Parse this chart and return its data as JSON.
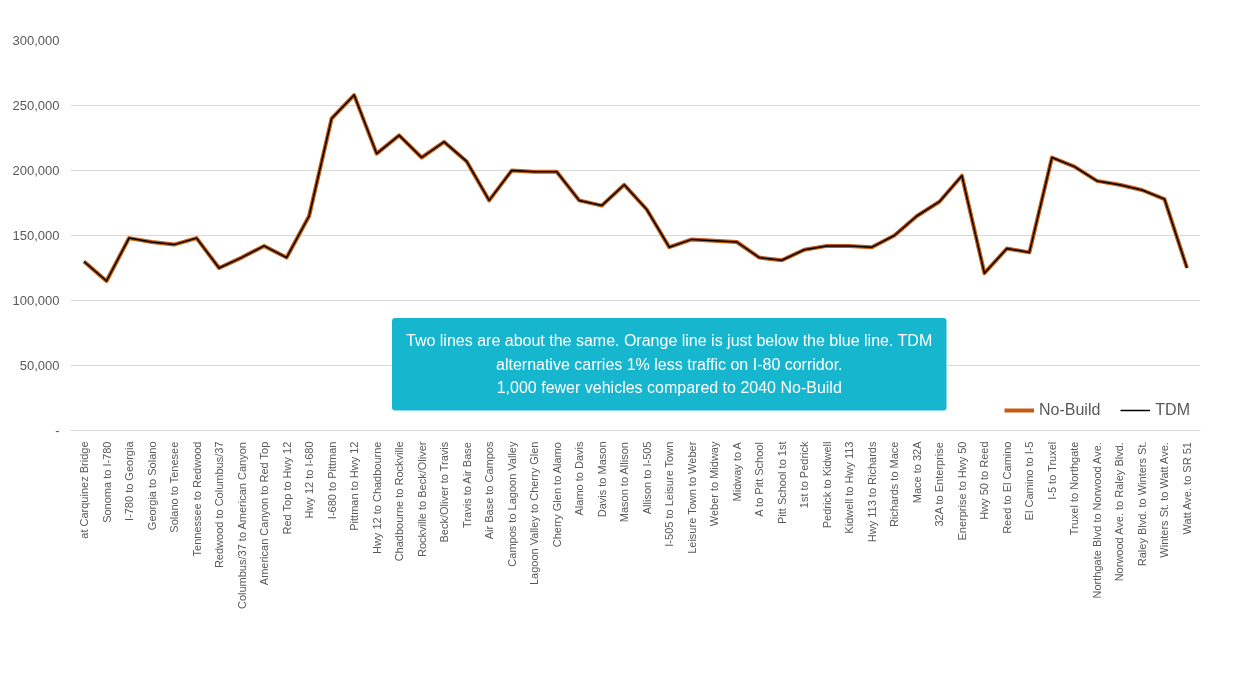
{
  "chart_data": {
    "type": "line",
    "categories": [
      "at Carquinez Bridge",
      "Sonoma to I-780",
      "I-780 to Georgia",
      "Georgia to Solano",
      "Solano to Tenesee",
      "Tennessee to Redwood",
      "Redwood to Columbus/37",
      "Columbus/37 to American Canyon",
      "American Canyon to Red Top",
      "Red Top to Hwy 12",
      "Hwy 12 to I-680",
      "I-680 to Pittman",
      "Pittman to Hwy 12",
      "Hwy 12 to Chadbourne",
      "Chadbourne to Rockville",
      "Rockville to Beck/Oliver",
      "Beck/Oliver to Travis",
      "Travis to Air Base",
      "Air Base to Campos",
      "Campos to Lagoon Valley",
      "Lagoon Valley to Cherry Glen",
      "Cherry Glen to Alamo",
      "Alamo to Davis",
      "Davis to Mason",
      "Mason to Allison",
      "Allison to I-505",
      "I-505 to Leisure Town",
      "Leisure Town to Weber",
      "Weber to Midway",
      "Midway to A",
      "A to Pitt School",
      "Pitt School to 1st",
      "1st to Pedrick",
      "Pedrick to Kidwell",
      "Kidwell to Hwy 113",
      "Hwy 113 to Richards",
      "Richards to Mace",
      "Mace to 32A",
      "32A to Enterprise",
      "Enerprise to Hwy 50",
      "Hwy 50 to Reed",
      "Reed to El Camino",
      "El Camino to I-5",
      "I-5 to Truxel",
      "Truxel to Northgate",
      "Northgate Blvd to Norwood Ave.",
      "Norwood Ave. to Raley Blvd.",
      "Raley Blvd. to Winters St.",
      "Winters St. to Watt Ave.",
      "Watt Ave. to SR 51"
    ],
    "series": [
      {
        "name": "No-Build",
        "color": "#c55a11",
        "values": [
          130000,
          115000,
          148000,
          145000,
          143000,
          148000,
          125000,
          133000,
          142000,
          133000,
          165000,
          240000,
          258000,
          213000,
          227000,
          210000,
          222000,
          207000,
          177000,
          200000,
          199000,
          199000,
          177000,
          173000,
          189000,
          170000,
          141000,
          147000,
          146000,
          145000,
          133000,
          131000,
          139000,
          142000,
          142000,
          141000,
          150000,
          165000,
          176000,
          196000,
          121000,
          140000,
          137000,
          210000,
          203000,
          192000,
          189000,
          185000,
          178000,
          125000
        ]
      },
      {
        "name": "TDM",
        "color": "#000000",
        "values": [
          130000,
          115000,
          148000,
          145000,
          143000,
          148000,
          125000,
          133000,
          142000,
          133000,
          165000,
          240000,
          258000,
          213000,
          227000,
          210000,
          222000,
          207000,
          177000,
          200000,
          199000,
          199000,
          177000,
          173000,
          189000,
          170000,
          141000,
          147000,
          146000,
          145000,
          133000,
          131000,
          139000,
          142000,
          142000,
          141000,
          150000,
          165000,
          176000,
          196000,
          121000,
          140000,
          137000,
          210000,
          203000,
          192000,
          189000,
          185000,
          178000,
          125000
        ]
      }
    ],
    "ylim": [
      0,
      300000
    ],
    "yticks": [
      {
        "value": 0,
        "label": "-"
      },
      {
        "value": 50000,
        "label": "50,000"
      },
      {
        "value": 100000,
        "label": "100,000"
      },
      {
        "value": 150000,
        "label": "150,000"
      },
      {
        "value": 200000,
        "label": "200,000"
      },
      {
        "value": 250000,
        "label": "250,000"
      },
      {
        "value": 300000,
        "label": "300,000"
      }
    ],
    "grid": "y",
    "legend": "bottom right",
    "marker": "none",
    "line_style": "solid",
    "annotations": [
      "Two lines are about the same. Orange line is just below the blue line. TDM alternative carries 1% less traffic on I-80 corridor.",
      "1,000 fewer vehicles compared to 2040 No-Build"
    ]
  }
}
